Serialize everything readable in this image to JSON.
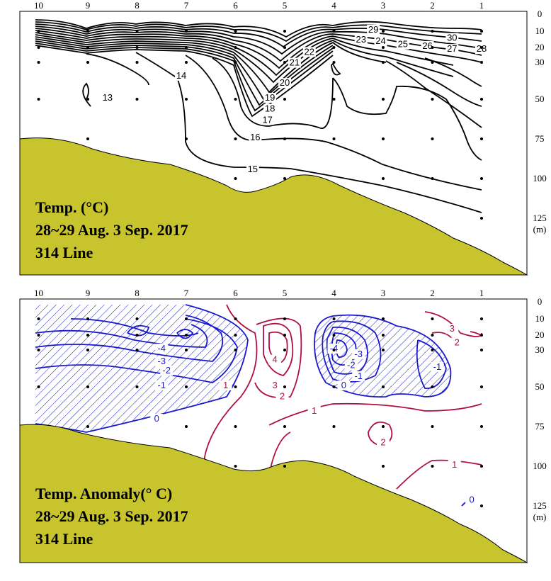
{
  "chart_data": [
    {
      "type": "contour",
      "title_lines": [
        "Temp. (°C)",
        "28~29 Aug. 3 Sep. 2017",
        "314 Line"
      ],
      "stations": [
        "10",
        "9",
        "8",
        "7",
        "6",
        "5",
        "4",
        "3",
        "2",
        "1"
      ],
      "depth_ticks": [
        "0",
        "10",
        "20",
        "30",
        "50",
        "75",
        "100",
        "125"
      ],
      "depth_unit": "(m)",
      "ylim": [
        0,
        135
      ],
      "contour_labels": [
        {
          "text": "30",
          "depth": 15,
          "station": 1.6
        },
        {
          "text": "29",
          "depth": 10,
          "station": 3.2
        },
        {
          "text": "28",
          "depth": 22,
          "station": 1.0
        },
        {
          "text": "27",
          "depth": 22,
          "station": 1.6
        },
        {
          "text": "26",
          "depth": 20,
          "station": 2.1
        },
        {
          "text": "25",
          "depth": 19,
          "station": 2.6
        },
        {
          "text": "24",
          "depth": 17,
          "station": 3.05
        },
        {
          "text": "23",
          "depth": 16,
          "station": 3.45
        },
        {
          "text": "22",
          "depth": 24,
          "station": 4.5
        },
        {
          "text": "21",
          "depth": 31,
          "station": 4.8
        },
        {
          "text": "20",
          "depth": 42,
          "station": 5.0
        },
        {
          "text": "19",
          "depth": 50,
          "station": 5.3
        },
        {
          "text": "18",
          "depth": 57,
          "station": 5.3
        },
        {
          "text": "17",
          "depth": 64,
          "station": 5.35
        },
        {
          "text": "16",
          "depth": 75,
          "station": 5.6
        },
        {
          "text": "15",
          "depth": 95,
          "station": 5.65
        },
        {
          "text": "14",
          "depth": 38,
          "station": 7.1
        },
        {
          "text": "13",
          "depth": 50,
          "station": 8.6
        }
      ]
    },
    {
      "type": "contour",
      "title_lines": [
        "Temp. Anomaly(° C)",
        "28~29 Aug. 3 Sep. 2017",
        "314 Line"
      ],
      "stations": [
        "10",
        "9",
        "8",
        "7",
        "6",
        "5",
        "4",
        "3",
        "2",
        "1"
      ],
      "depth_ticks": [
        "0",
        "10",
        "20",
        "30",
        "50",
        "75",
        "100",
        "125"
      ],
      "depth_unit": "(m)",
      "ylim": [
        0,
        135
      ],
      "negative_color": "#1a1acc",
      "positive_color": "#b01040",
      "contour_labels": [
        {
          "text": "-4",
          "depth": 30,
          "station": 7.5,
          "sign": "neg"
        },
        {
          "text": "-3",
          "depth": 37,
          "station": 7.5,
          "sign": "neg"
        },
        {
          "text": "-2",
          "depth": 42,
          "station": 7.4,
          "sign": "neg"
        },
        {
          "text": "-1",
          "depth": 50,
          "station": 7.5,
          "sign": "neg"
        },
        {
          "text": "0",
          "depth": 71,
          "station": 7.6,
          "sign": "neg"
        },
        {
          "text": "-4",
          "depth": 30,
          "station": 4.0,
          "sign": "neg"
        },
        {
          "text": "-3",
          "depth": 33,
          "station": 3.5,
          "sign": "neg"
        },
        {
          "text": "-2",
          "depth": 39,
          "station": 3.65,
          "sign": "neg"
        },
        {
          "text": "-1",
          "depth": 45,
          "station": 3.5,
          "sign": "neg"
        },
        {
          "text": "0",
          "depth": 50,
          "station": 3.8,
          "sign": "neg"
        },
        {
          "text": "-1",
          "depth": 40,
          "station": 1.9,
          "sign": "neg"
        },
        {
          "text": "0",
          "depth": 122,
          "station": 1.2,
          "sign": "neg"
        },
        {
          "text": "4",
          "depth": 36,
          "station": 5.2,
          "sign": "pos"
        },
        {
          "text": "3",
          "depth": 50,
          "station": 5.2,
          "sign": "pos"
        },
        {
          "text": "2",
          "depth": 57,
          "station": 5.05,
          "sign": "pos"
        },
        {
          "text": "1",
          "depth": 50,
          "station": 6.2,
          "sign": "pos"
        },
        {
          "text": "1",
          "depth": 66,
          "station": 4.4,
          "sign": "pos"
        },
        {
          "text": "2",
          "depth": 86,
          "station": 3.0,
          "sign": "pos"
        },
        {
          "text": "3",
          "depth": 17,
          "station": 1.6,
          "sign": "pos"
        },
        {
          "text": "2",
          "depth": 26,
          "station": 1.5,
          "sign": "pos"
        },
        {
          "text": "1",
          "depth": 100,
          "station": 1.55,
          "sign": "pos"
        }
      ]
    }
  ]
}
